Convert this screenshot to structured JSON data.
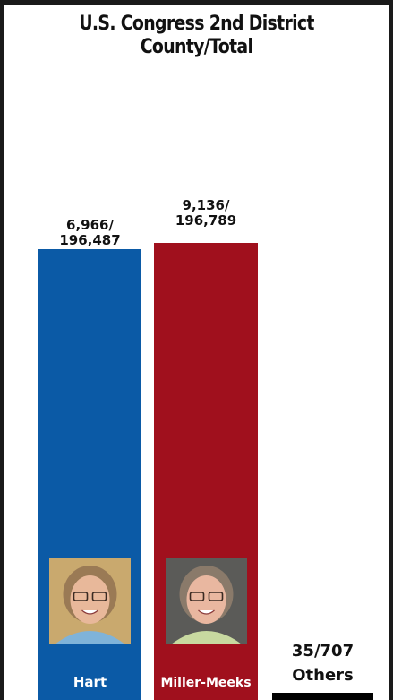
{
  "chart_data": {
    "type": "bar",
    "title": [
      "U.S. Congress 2nd District",
      "County/Total"
    ],
    "categories": [
      "Hart",
      "Miller-Meeks",
      "Others"
    ],
    "series": [
      {
        "values": [
          6966,
          9136,
          35
        ]
      }
    ],
    "totals": [
      196487,
      196789,
      707
    ],
    "value_labels": [
      "6,966/\n196,487",
      "9,136/\n196,789",
      "35/707"
    ],
    "bar_labels": [
      "Hart",
      "Miller-Meeks",
      "Others"
    ],
    "colors": [
      "#0b5aa6",
      "#a0101d",
      "#000000"
    ],
    "xlabel": "",
    "ylabel": "",
    "grid": false,
    "legend": "none"
  },
  "icons": {
    "hart_photo": "candidate-portrait-icon",
    "miller_meeks_photo": "candidate-portrait-icon"
  }
}
